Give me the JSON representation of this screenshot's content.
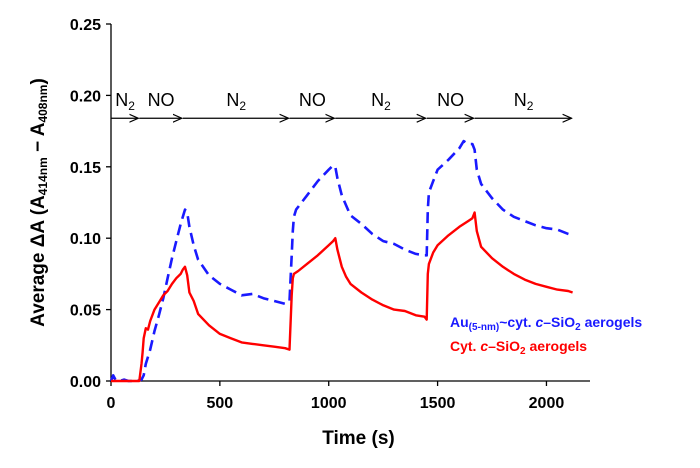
{
  "chart_data": {
    "type": "line",
    "title": "",
    "xlabel": "Time (s)",
    "ylabel": "Average ΔA (A414nm − A408nm)",
    "ylabel_parts": {
      "prefix": "Average ΔA (A",
      "sub1": "414nm",
      "mid": " − A",
      "sub2": "408nm",
      "suffix": ")"
    },
    "xlim": [
      0,
      2200
    ],
    "ylim": [
      0,
      0.25
    ],
    "xticks": [
      0,
      500,
      1000,
      1500,
      2000
    ],
    "xtick_labels": [
      "0",
      "500",
      "1000",
      "1500",
      "2000"
    ],
    "yticks": [
      0,
      0.05,
      0.1,
      0.15,
      0.2,
      0.25
    ],
    "ytick_labels": [
      "0.00",
      "0.05",
      "0.10",
      "0.15",
      "0.20",
      "0.25"
    ],
    "grid": false,
    "legend_position": "bottom-right",
    "phases": [
      {
        "label": "N",
        "sub": "2",
        "start": 0,
        "end": 130
      },
      {
        "label": "NO",
        "sub": "",
        "start": 130,
        "end": 330
      },
      {
        "label": "N",
        "sub": "2",
        "start": 330,
        "end": 820
      },
      {
        "label": "NO",
        "sub": "",
        "start": 820,
        "end": 1030
      },
      {
        "label": "N",
        "sub": "2",
        "start": 1030,
        "end": 1450
      },
      {
        "label": "NO",
        "sub": "",
        "start": 1450,
        "end": 1670
      },
      {
        "label": "N",
        "sub": "2",
        "start": 1670,
        "end": 2120
      }
    ],
    "phase_arrow_y": 0.184,
    "series": [
      {
        "name": "Au(5-nm)~cyt. c–SiO2 aerogels",
        "legend_parts": {
          "a": "Au",
          "sub1": "(5-nm)",
          "b": "~cyt. ",
          "italic": "c",
          "c": "–SiO",
          "sub2": "2",
          "d": " aerogels"
        },
        "color": "#1a1aff",
        "style": "dashed",
        "x": [
          0,
          10,
          20,
          40,
          60,
          80,
          100,
          120,
          140,
          150,
          160,
          180,
          200,
          220,
          240,
          260,
          280,
          300,
          320,
          340,
          350,
          360,
          380,
          400,
          450,
          500,
          550,
          600,
          650,
          700,
          750,
          800,
          820,
          830,
          835,
          840,
          850,
          900,
          950,
          1000,
          1020,
          1030,
          1040,
          1060,
          1080,
          1100,
          1150,
          1200,
          1250,
          1300,
          1350,
          1400,
          1440,
          1450,
          1455,
          1460,
          1480,
          1500,
          1550,
          1600,
          1620,
          1640,
          1660,
          1670,
          1680,
          1700,
          1750,
          1800,
          1850,
          1900,
          1950,
          2000,
          2050,
          2100,
          2120
        ],
        "y": [
          0,
          0.004,
          0.001,
          0.0,
          0.001,
          0.0,
          0.0,
          0.0,
          0.001,
          0.004,
          0.012,
          0.022,
          0.035,
          0.046,
          0.058,
          0.072,
          0.086,
          0.098,
          0.11,
          0.12,
          0.118,
          0.108,
          0.095,
          0.085,
          0.074,
          0.068,
          0.064,
          0.06,
          0.061,
          0.058,
          0.056,
          0.054,
          0.056,
          0.088,
          0.105,
          0.115,
          0.12,
          0.13,
          0.14,
          0.148,
          0.151,
          0.15,
          0.142,
          0.13,
          0.123,
          0.116,
          0.11,
          0.103,
          0.098,
          0.096,
          0.092,
          0.089,
          0.088,
          0.088,
          0.12,
          0.132,
          0.14,
          0.148,
          0.155,
          0.163,
          0.168,
          0.166,
          0.166,
          0.162,
          0.148,
          0.138,
          0.128,
          0.12,
          0.115,
          0.112,
          0.109,
          0.107,
          0.106,
          0.103,
          0.102
        ]
      },
      {
        "name": "Cyt. c–SiO2 aerogels",
        "legend_parts": {
          "a": "Cyt. ",
          "italic": "c",
          "c": "–SiO",
          "sub2": "2",
          "d": " aerogels"
        },
        "color": "#ff0000",
        "style": "solid",
        "x": [
          0,
          20,
          60,
          100,
          130,
          140,
          145,
          150,
          160,
          170,
          180,
          200,
          220,
          240,
          260,
          280,
          300,
          320,
          330,
          340,
          350,
          360,
          380,
          400,
          450,
          500,
          550,
          600,
          650,
          700,
          750,
          800,
          820,
          830,
          835,
          840,
          860,
          900,
          950,
          1000,
          1020,
          1030,
          1040,
          1060,
          1080,
          1100,
          1150,
          1200,
          1250,
          1300,
          1350,
          1400,
          1440,
          1450,
          1455,
          1460,
          1480,
          1500,
          1550,
          1600,
          1640,
          1660,
          1670,
          1680,
          1700,
          1750,
          1800,
          1850,
          1900,
          1950,
          2000,
          2050,
          2100,
          2120
        ],
        "y": [
          0,
          0,
          0,
          0,
          0.0,
          0.012,
          0.02,
          0.03,
          0.037,
          0.036,
          0.042,
          0.05,
          0.055,
          0.06,
          0.063,
          0.068,
          0.072,
          0.075,
          0.078,
          0.08,
          0.074,
          0.062,
          0.056,
          0.047,
          0.039,
          0.033,
          0.03,
          0.027,
          0.026,
          0.025,
          0.024,
          0.023,
          0.022,
          0.06,
          0.072,
          0.075,
          0.077,
          0.082,
          0.088,
          0.095,
          0.098,
          0.1,
          0.092,
          0.08,
          0.073,
          0.068,
          0.062,
          0.057,
          0.053,
          0.05,
          0.049,
          0.046,
          0.045,
          0.043,
          0.075,
          0.082,
          0.09,
          0.095,
          0.102,
          0.108,
          0.112,
          0.114,
          0.118,
          0.105,
          0.094,
          0.086,
          0.08,
          0.075,
          0.071,
          0.068,
          0.066,
          0.064,
          0.063,
          0.062
        ]
      }
    ]
  }
}
